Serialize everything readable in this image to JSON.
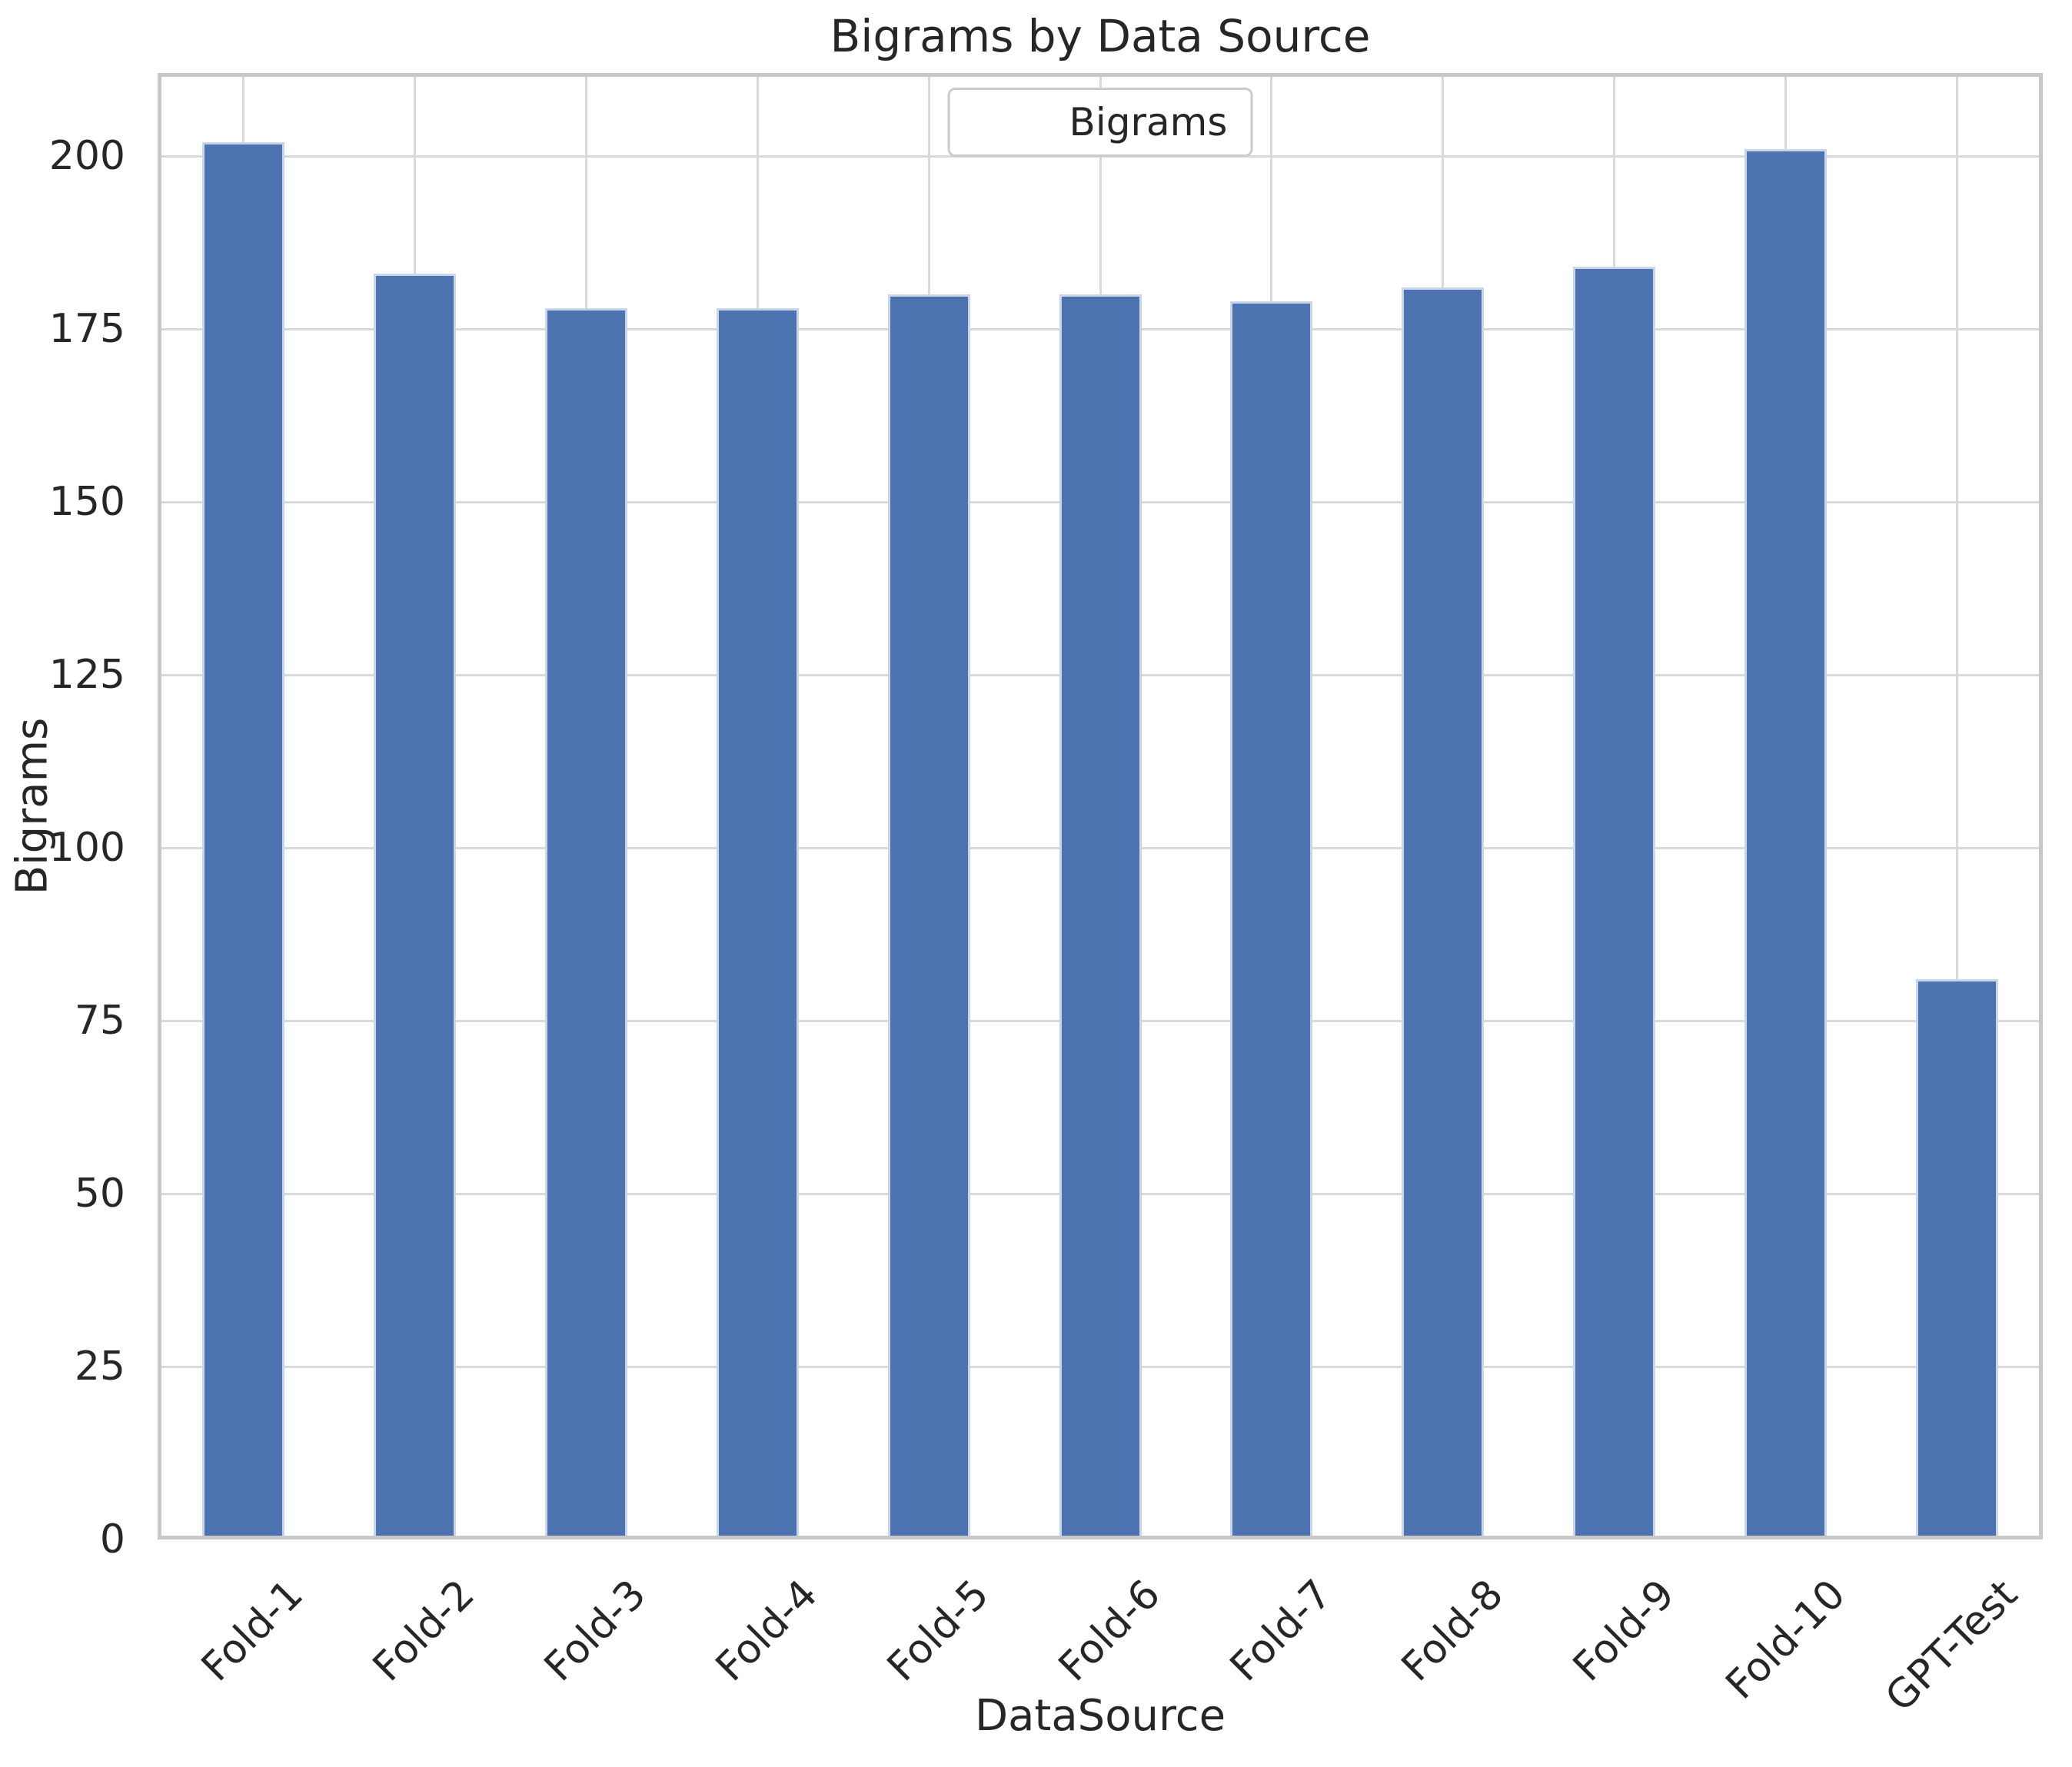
{
  "chart_data": {
    "type": "bar",
    "title": "Bigrams by Data Source",
    "xlabel": "DataSource",
    "ylabel": "Bigrams",
    "legend": {
      "label": "Bigrams",
      "position": "upper center"
    },
    "categories": [
      "Fold-1",
      "Fold-2",
      "Fold-3",
      "Fold-4",
      "Fold-5",
      "Fold-6",
      "Fold-7",
      "Fold-8",
      "Fold-9",
      "Fold-10",
      "GPT-Test"
    ],
    "series": [
      {
        "name": "Bigrams",
        "values": [
          202,
          183,
          178,
          178,
          180,
          180,
          179,
          181,
          184,
          201,
          81
        ]
      }
    ],
    "ylim": [
      0,
      212
    ],
    "yticks": [
      0,
      25,
      50,
      75,
      100,
      125,
      150,
      175,
      200
    ],
    "x_tick_rotation": 45,
    "grid": true,
    "legend_position": "upper center",
    "colors": {
      "bar": "#4C72B0",
      "bar_edge": "#C9D5E8",
      "grid": "#D9D9D9",
      "spine": "#C8C8C8",
      "text": "#262626",
      "background": "#FFFFFF"
    }
  }
}
